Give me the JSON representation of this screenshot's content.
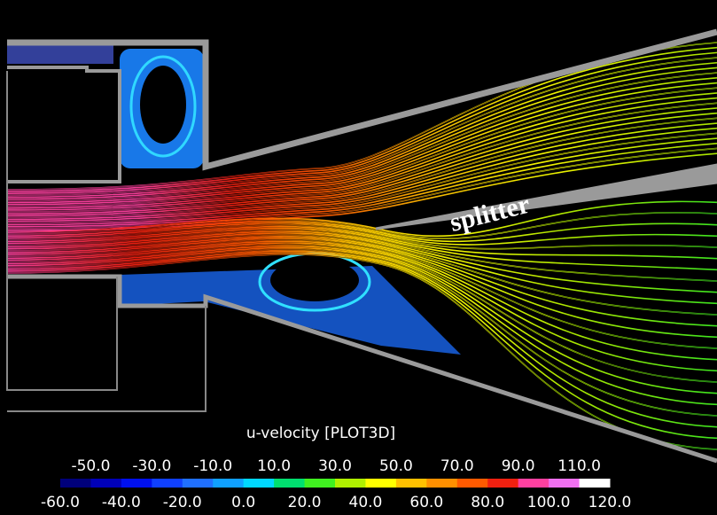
{
  "annotation": "splitter",
  "colorbar": {
    "title": "u-velocity [PLOT3D]",
    "upper_labels": [
      "-50.0",
      "-30.0",
      "-10.0",
      "10.0",
      "30.0",
      "50.0",
      "70.0",
      "90.0",
      "110.0"
    ],
    "lower_labels": [
      "-60.0",
      "-40.0",
      "-20.0",
      "0.0",
      "20.0",
      "40.0",
      "60.0",
      "80.0",
      "100.0",
      "120.0"
    ],
    "colors": [
      "#00007a",
      "#0000b8",
      "#0010ee",
      "#1040ff",
      "#2070ff",
      "#10a0ff",
      "#00d8ff",
      "#00e070",
      "#40f020",
      "#b0f000",
      "#ffff00",
      "#ffc000",
      "#ff9000",
      "#ff5a00",
      "#f02010",
      "#ff40a0",
      "#f070f0",
      "#ffffff"
    ]
  }
}
